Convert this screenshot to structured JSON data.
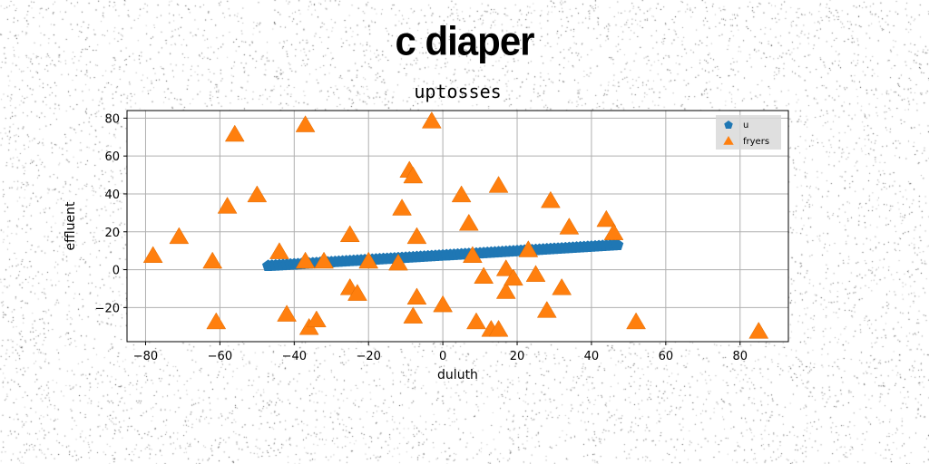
{
  "figure": {
    "suptitle": "c diaper"
  },
  "chart_data": {
    "type": "scatter",
    "title": "uptosses",
    "xlabel": "duluth",
    "ylabel": "effluent",
    "xlim": [
      -85,
      93
    ],
    "ylim": [
      -38,
      84
    ],
    "xticks": [
      -80,
      -60,
      -40,
      -20,
      0,
      20,
      40,
      60,
      80
    ],
    "yticks": [
      -20,
      0,
      20,
      40,
      60,
      80
    ],
    "grid": true,
    "legend_position": "top-right",
    "series": [
      {
        "name": "u",
        "marker": "pentagon",
        "color": "#1f77b4",
        "line_from": [
          -47,
          2
        ],
        "line_to": [
          47,
          13
        ],
        "num_points": 95
      },
      {
        "name": "fryers",
        "marker": "triangle",
        "color": "#ff7f0e",
        "x": [
          -78,
          -71,
          -62,
          -61,
          -58,
          -56,
          -50,
          -44,
          -42,
          -37,
          -37,
          -36,
          -34,
          -32,
          -25,
          -25,
          -23,
          -20,
          -12,
          -11,
          -9,
          -8,
          -8,
          -7,
          -7,
          -3,
          0,
          5,
          7,
          8,
          9,
          11,
          13,
          15,
          15,
          17,
          17,
          19,
          23,
          25,
          28,
          29,
          32,
          34,
          44,
          46,
          52,
          85
        ],
        "y": [
          7,
          17,
          4,
          -28,
          33,
          71,
          39,
          9,
          -24,
          76,
          4,
          -31,
          -27,
          4,
          -10,
          18,
          -13,
          4,
          3,
          32,
          52,
          49,
          -25,
          17,
          -15,
          78,
          -19,
          39,
          24,
          7,
          -28,
          -4,
          -32,
          -32,
          44,
          0,
          -12,
          -5,
          10,
          -3,
          -22,
          36,
          -10,
          22,
          26,
          19,
          -28,
          -33
        ]
      }
    ]
  }
}
